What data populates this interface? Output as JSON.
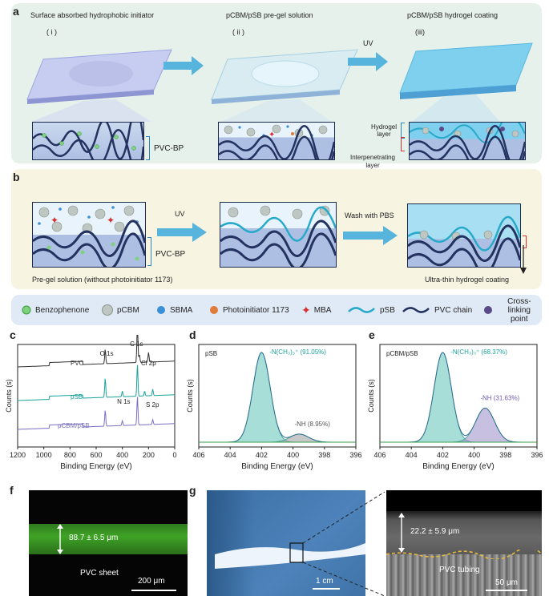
{
  "panel_a": {
    "label": "a",
    "step1_title": "Surface absorbed hydrophobic initiator",
    "step1_num": "( i )",
    "step2_title": "pCBM/pSB pre-gel solution",
    "step2_num": "( ii )",
    "step3_title": "pCBM/pSB hydrogel coating",
    "step3_num": "(iii)",
    "uv": "UV",
    "pvc_bp": "PVC-BP",
    "hydrogel_layer": "Hydrogel\nlayer",
    "interpenetrating_layer": "Interpenetrating\nlayer"
  },
  "panel_b": {
    "label": "b",
    "uv": "UV",
    "pvc_bp": "PVC-BP",
    "wash": "Wash with PBS",
    "caption_left": "Pre-gel solution (without photoinitiator 1173)",
    "caption_right": "Ultra-thin hydrogel  coating"
  },
  "legend": {
    "items": [
      {
        "label": "Benzophenone",
        "icon": "benzophenone-icon",
        "color": "#7fd07f"
      },
      {
        "label": "pCBM",
        "icon": "pcbm-icon",
        "color": "#bfc7c2"
      },
      {
        "label": "SBMA",
        "icon": "sbma-icon",
        "color": "#3a8fd6"
      },
      {
        "label": "Photoinitiator 1173",
        "icon": "photoinitiator-icon",
        "color": "#e07b39"
      },
      {
        "label": "MBA",
        "icon": "mba-icon",
        "color": "#d62f2f"
      },
      {
        "label": "pSB",
        "icon": "psb-line-icon",
        "color": "#27a9c9"
      },
      {
        "label": "PVC chain",
        "icon": "pvc-chain-icon",
        "color": "#23325e"
      },
      {
        "label": "Cross-linking\npoint",
        "icon": "crosslink-icon",
        "color": "#5a4a8a"
      }
    ]
  },
  "chart_data": [
    {
      "panel": "c",
      "type": "line",
      "xlabel": "Binding Energy (eV)",
      "ylabel": "Counts (s)",
      "xlim": [
        1200,
        0
      ],
      "x_ticks": [
        1200,
        1000,
        800,
        600,
        400,
        200,
        0
      ],
      "series": [
        {
          "name": "PVC",
          "color": "#333333",
          "peaks": [
            "O 1s",
            "C 1s",
            "Cl 2p"
          ]
        },
        {
          "name": "pSB",
          "color": "#1aa39a",
          "peaks": [
            "N 1s",
            "S 2p"
          ]
        },
        {
          "name": "pCBM/pSB",
          "color": "#7a6fc4",
          "peaks": []
        }
      ],
      "annotations": [
        "O 1s",
        "C 1s",
        "Cl 2p",
        "N 1s",
        "S 2p"
      ]
    },
    {
      "panel": "d",
      "type": "area",
      "title": "pSB",
      "xlabel": "Binding Energy (eV)",
      "ylabel": "Counts (s)",
      "xlim": [
        406,
        396
      ],
      "x_ticks": [
        406,
        404,
        402,
        400,
        398,
        396
      ],
      "peaks": [
        {
          "label": "-N(CH3)3+ (91.05%)",
          "center": 402.0,
          "height": 1.0,
          "width": 0.55,
          "color": "#5fc2b8"
        },
        {
          "label": "-NH (8.95%)",
          "center": 399.6,
          "height": 0.09,
          "width": 0.6,
          "color": "#9a9a9a"
        }
      ]
    },
    {
      "panel": "e",
      "type": "area",
      "title": "pCBM/pSB",
      "xlabel": "Binding Energy (eV)",
      "ylabel": "Counts (s)",
      "xlim": [
        406,
        396
      ],
      "x_ticks": [
        406,
        404,
        402,
        400,
        398,
        396
      ],
      "peaks": [
        {
          "label": "-N(CH3)3+ (68.37%)",
          "center": 402.0,
          "height": 1.0,
          "width": 0.55,
          "color": "#5fc2b8"
        },
        {
          "label": "-NH (31.63%)",
          "center": 399.3,
          "height": 0.38,
          "width": 0.6,
          "color": "#9b8cc9"
        }
      ]
    }
  ],
  "panel_c_label": "c",
  "panel_d_label": "d",
  "panel_e_label": "e",
  "panel_d": {
    "title": "pSB",
    "peak1": "-N(CH₃)₃⁺ (91.05%)",
    "peak2": "-NH (8.95%)"
  },
  "panel_e": {
    "title": "pCBM/pSB",
    "peak1": "-N(CH₃)₃⁺ (68.37%)",
    "peak2": "-NH (31.63%)"
  },
  "panel_f": {
    "label": "f",
    "thickness": "88.7 ± 6.5 μm",
    "sample": "PVC sheet",
    "scale": "200 μm"
  },
  "panel_g": {
    "label": "g",
    "scale_left": "1 cm",
    "thickness": "22.2 ± 5.9 μm",
    "sample": "PVC tubing",
    "scale_right": "50 μm"
  }
}
